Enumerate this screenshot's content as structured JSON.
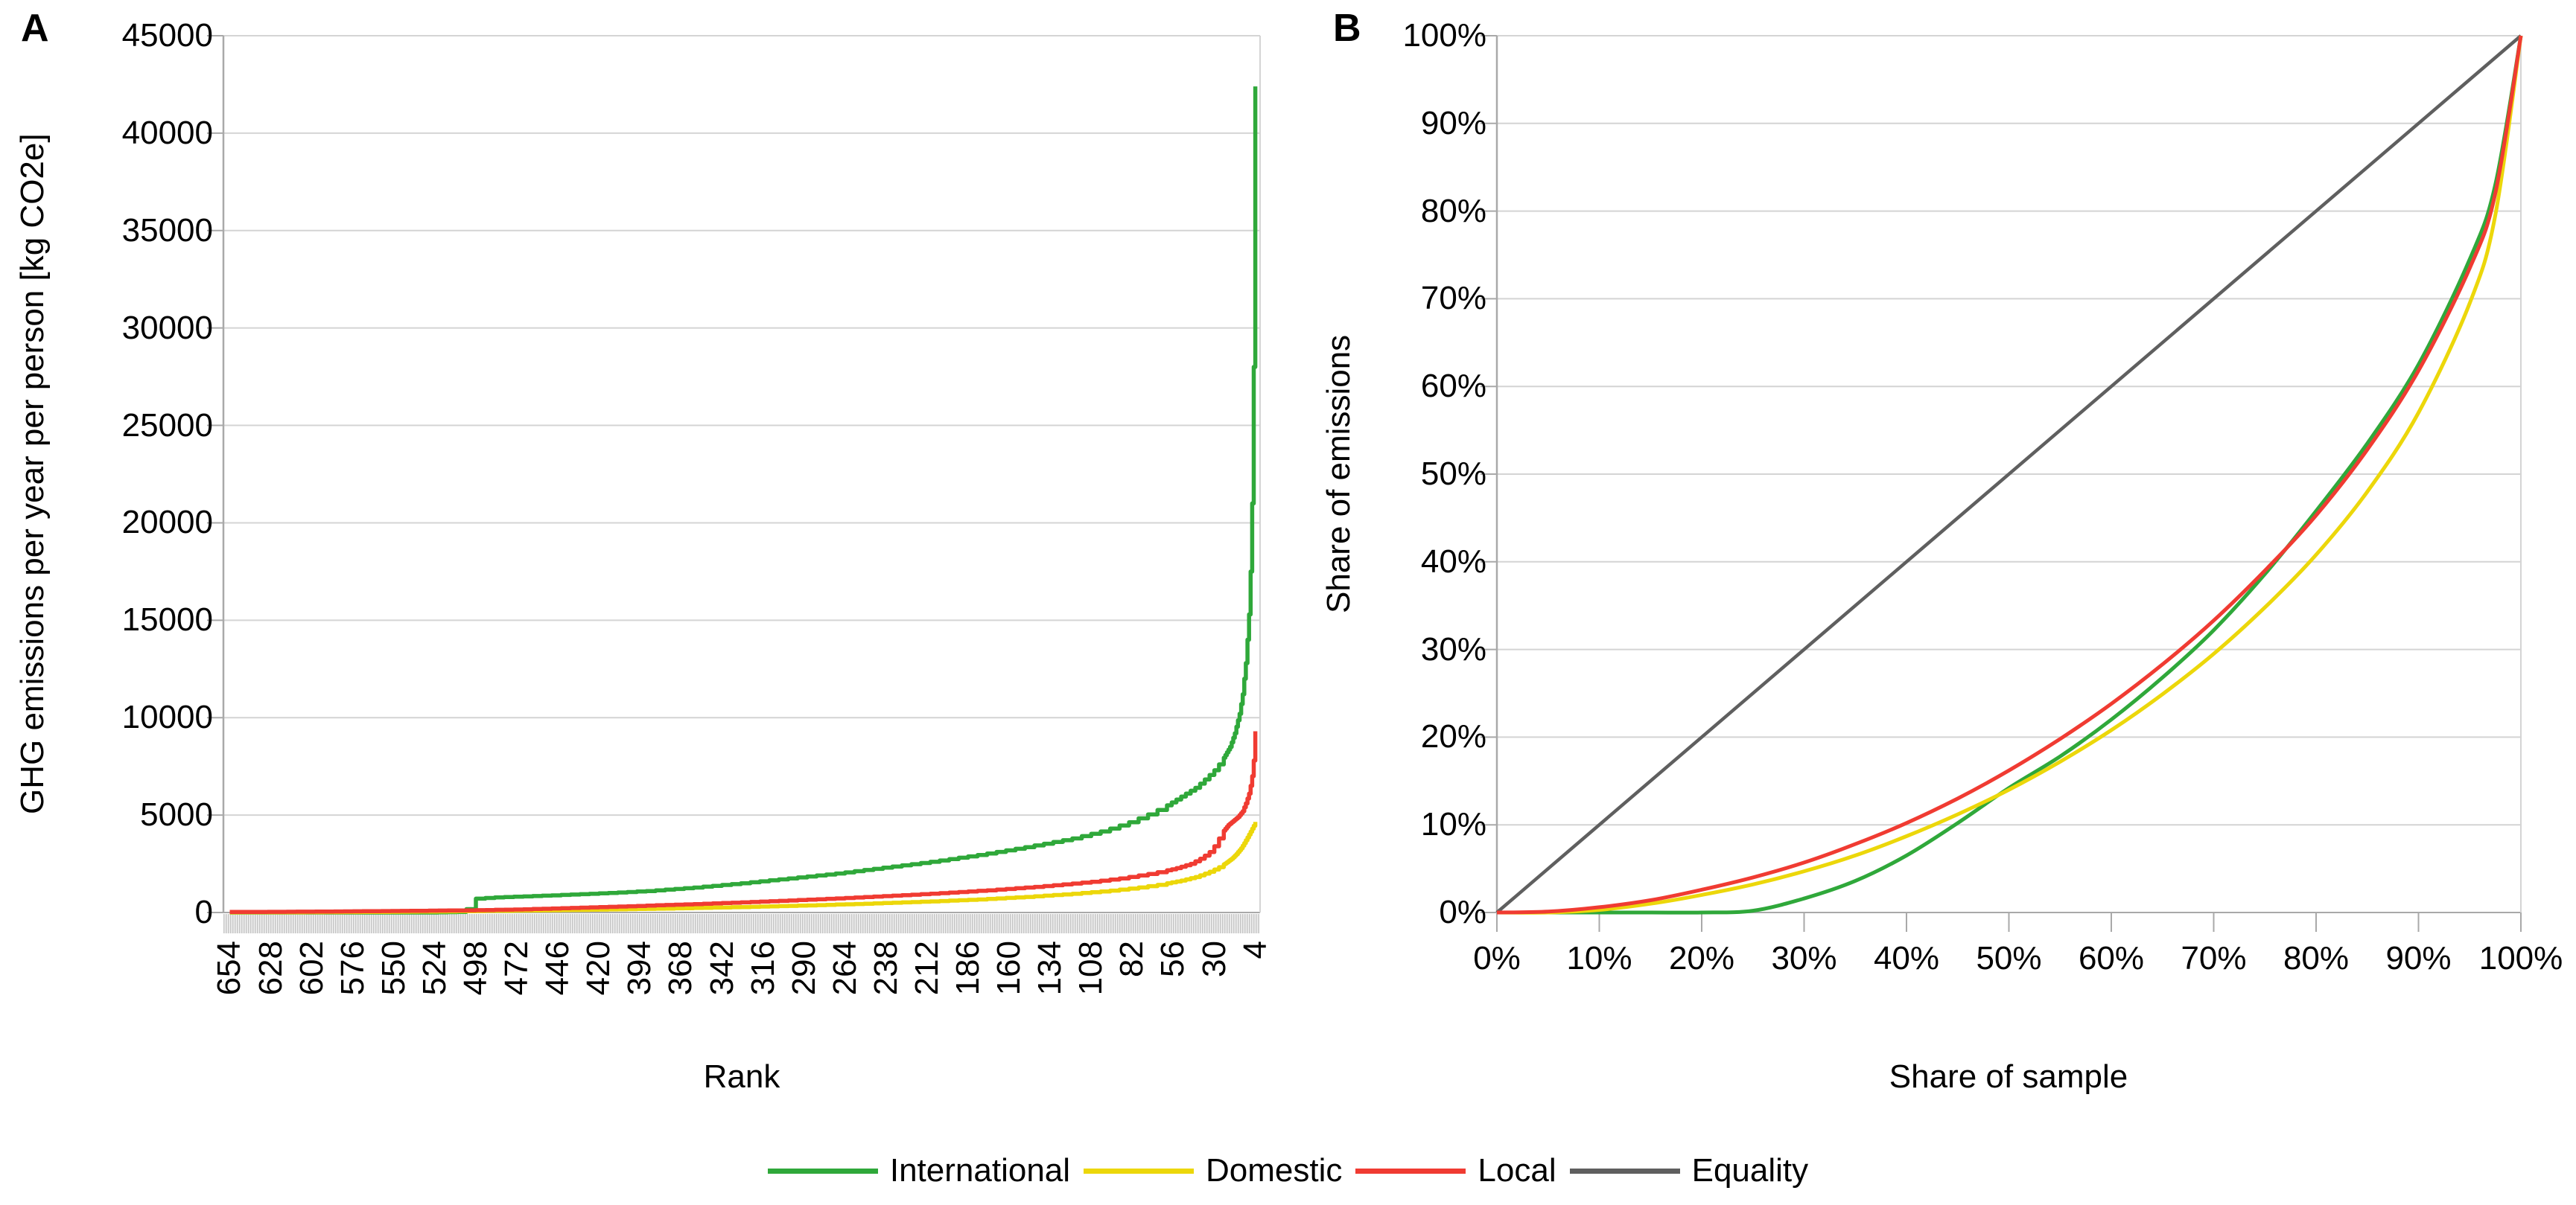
{
  "figure": {
    "panel_a": {
      "letter": "A"
    },
    "panel_b": {
      "letter": "B"
    },
    "legend": [
      {
        "label": "International",
        "color": "#2fa83a"
      },
      {
        "label": "Domestic",
        "color": "#ecd70a"
      },
      {
        "label": "Local",
        "color": "#f03b32"
      },
      {
        "label": "Equality",
        "color": "#5f5f5f"
      }
    ],
    "colors": {
      "gridline": "#d4d4d4",
      "axis": "#a9a9a9",
      "tick_band_dark": "#c6c6c6",
      "tick_band_light": "#f2f2f2",
      "text": "#000000"
    }
  },
  "chart_data": [
    {
      "type": "line",
      "panel": "A",
      "style": "step",
      "xlabel": "Rank",
      "ylabel": "GHG emissions per year per person [kg CO2e]",
      "x_domain": [
        658,
        1
      ],
      "x_tick_labels": [
        654,
        628,
        602,
        576,
        550,
        524,
        498,
        472,
        446,
        420,
        394,
        368,
        342,
        316,
        290,
        264,
        238,
        212,
        186,
        160,
        134,
        108,
        82,
        56,
        30,
        4
      ],
      "ylim": [
        0,
        45000
      ],
      "y_ticks": [
        45000,
        40000,
        35000,
        30000,
        25000,
        20000,
        15000,
        10000,
        5000,
        0
      ],
      "grid": "horizontal",
      "series": [
        {
          "name": "International",
          "color": "#2fa83a",
          "points": [
            [
              654,
              0
            ],
            [
              525,
              0
            ],
            [
              505,
              40
            ],
            [
              500,
              700
            ],
            [
              488,
              770
            ],
            [
              470,
              820
            ],
            [
              450,
              880
            ],
            [
              420,
              980
            ],
            [
              390,
              1100
            ],
            [
              360,
              1280
            ],
            [
              330,
              1500
            ],
            [
              300,
              1750
            ],
            [
              270,
              2000
            ],
            [
              240,
              2300
            ],
            [
              210,
              2600
            ],
            [
              180,
              2950
            ],
            [
              150,
              3350
            ],
            [
              120,
              3800
            ],
            [
              100,
              4200
            ],
            [
              85,
              4600
            ],
            [
              70,
              5100
            ],
            [
              60,
              5500
            ],
            [
              50,
              6000
            ],
            [
              42,
              6400
            ],
            [
              35,
              6900
            ],
            [
              30,
              7300
            ],
            [
              25,
              7800
            ],
            [
              20,
              8500
            ],
            [
              17,
              9200
            ],
            [
              14,
              10200
            ],
            [
              12,
              11200
            ],
            [
              10,
              12800
            ],
            [
              9,
              14000
            ],
            [
              8,
              15300
            ],
            [
              7,
              17500
            ],
            [
              6,
              21000
            ],
            [
              5,
              28000
            ],
            [
              4,
              42400
            ]
          ]
        },
        {
          "name": "Domestic",
          "color": "#ecd70a",
          "points": [
            [
              654,
              5
            ],
            [
              600,
              15
            ],
            [
              560,
              30
            ],
            [
              520,
              55
            ],
            [
              490,
              80
            ],
            [
              450,
              115
            ],
            [
              410,
              160
            ],
            [
              370,
              215
            ],
            [
              330,
              280
            ],
            [
              290,
              360
            ],
            [
              250,
              455
            ],
            [
              210,
              570
            ],
            [
              180,
              670
            ],
            [
              150,
              800
            ],
            [
              120,
              960
            ],
            [
              100,
              1090
            ],
            [
              80,
              1260
            ],
            [
              65,
              1430
            ],
            [
              52,
              1620
            ],
            [
              42,
              1820
            ],
            [
              34,
              2050
            ],
            [
              28,
              2280
            ],
            [
              23,
              2520
            ],
            [
              19,
              2760
            ],
            [
              16,
              3000
            ],
            [
              13,
              3300
            ],
            [
              11,
              3560
            ],
            [
              9,
              3850
            ],
            [
              8,
              4000
            ],
            [
              7,
              4150
            ],
            [
              6,
              4300
            ],
            [
              5,
              4450
            ],
            [
              4,
              4650
            ]
          ]
        },
        {
          "name": "Local",
          "color": "#f03b32",
          "points": [
            [
              654,
              25
            ],
            [
              600,
              45
            ],
            [
              560,
              70
            ],
            [
              520,
              100
            ],
            [
              500,
              115
            ],
            [
              470,
              160
            ],
            [
              440,
              230
            ],
            [
              410,
              300
            ],
            [
              380,
              380
            ],
            [
              350,
              460
            ],
            [
              320,
              550
            ],
            [
              290,
              650
            ],
            [
              260,
              760
            ],
            [
              230,
              880
            ],
            [
              200,
              1010
            ],
            [
              170,
              1160
            ],
            [
              140,
              1340
            ],
            [
              110,
              1560
            ],
            [
              90,
              1750
            ],
            [
              70,
              2000
            ],
            [
              55,
              2250
            ],
            [
              45,
              2500
            ],
            [
              38,
              2800
            ],
            [
              33,
              3100
            ],
            [
              30,
              3400
            ],
            [
              27,
              3800
            ],
            [
              24,
              4200
            ],
            [
              21,
              4500
            ],
            [
              18,
              4700
            ],
            [
              15,
              4900
            ],
            [
              12,
              5200
            ],
            [
              10,
              5600
            ],
            [
              8,
              6100
            ],
            [
              7,
              6500
            ],
            [
              6,
              7000
            ],
            [
              5,
              7800
            ],
            [
              4,
              9300
            ]
          ]
        }
      ]
    },
    {
      "type": "line",
      "panel": "B",
      "style": "smooth",
      "xlabel": "Share of sample",
      "ylabel": "Share of emissions",
      "xlim": [
        0,
        100
      ],
      "ylim": [
        0,
        100
      ],
      "x_ticks": [
        "0%",
        "10%",
        "20%",
        "30%",
        "40%",
        "50%",
        "60%",
        "70%",
        "80%",
        "90%",
        "100%"
      ],
      "y_ticks": [
        "100%",
        "90%",
        "80%",
        "70%",
        "60%",
        "50%",
        "40%",
        "30%",
        "20%",
        "10%",
        "0%"
      ],
      "grid": "horizontal",
      "series": [
        {
          "name": "Equality",
          "color": "#5f5f5f",
          "straight": true,
          "points": [
            [
              0,
              0
            ],
            [
              100,
              100
            ]
          ]
        },
        {
          "name": "International",
          "color": "#2fa83a",
          "points": [
            [
              0,
              0
            ],
            [
              5,
              0
            ],
            [
              10,
              0
            ],
            [
              15,
              0
            ],
            [
              20,
              0
            ],
            [
              25,
              0.2
            ],
            [
              30,
              1.6
            ],
            [
              35,
              3.6
            ],
            [
              40,
              6.5
            ],
            [
              45,
              10.2
            ],
            [
              50,
              14.2
            ],
            [
              55,
              17.8
            ],
            [
              60,
              22
            ],
            [
              65,
              26.8
            ],
            [
              70,
              32.2
            ],
            [
              75,
              38.6
            ],
            [
              80,
              45.8
            ],
            [
              85,
              53.5
            ],
            [
              90,
              62.5
            ],
            [
              95,
              74.5
            ],
            [
              97.5,
              83
            ],
            [
              100,
              100
            ]
          ]
        },
        {
          "name": "Domestic",
          "color": "#ecd70a",
          "points": [
            [
              0,
              0
            ],
            [
              5,
              0
            ],
            [
              10,
              0.3
            ],
            [
              15,
              1
            ],
            [
              20,
              2
            ],
            [
              25,
              3.2
            ],
            [
              30,
              4.7
            ],
            [
              35,
              6.5
            ],
            [
              40,
              8.7
            ],
            [
              45,
              11.2
            ],
            [
              50,
              14
            ],
            [
              55,
              17.2
            ],
            [
              60,
              20.8
            ],
            [
              65,
              24.9
            ],
            [
              70,
              29.5
            ],
            [
              75,
              34.8
            ],
            [
              80,
              40.8
            ],
            [
              85,
              48
            ],
            [
              90,
              57
            ],
            [
              95,
              69.5
            ],
            [
              97.5,
              79.5
            ],
            [
              100,
              100
            ]
          ]
        },
        {
          "name": "Local",
          "color": "#f03b32",
          "points": [
            [
              0,
              0
            ],
            [
              5,
              0.1
            ],
            [
              10,
              0.6
            ],
            [
              15,
              1.4
            ],
            [
              20,
              2.6
            ],
            [
              25,
              4
            ],
            [
              30,
              5.7
            ],
            [
              35,
              7.8
            ],
            [
              40,
              10.2
            ],
            [
              45,
              13
            ],
            [
              50,
              16.2
            ],
            [
              55,
              19.8
            ],
            [
              60,
              23.8
            ],
            [
              65,
              28.3
            ],
            [
              70,
              33.3
            ],
            [
              75,
              39
            ],
            [
              80,
              45.3
            ],
            [
              85,
              52.8
            ],
            [
              90,
              61.8
            ],
            [
              95,
              73.5
            ],
            [
              97.5,
              82
            ],
            [
              100,
              100
            ]
          ]
        }
      ]
    }
  ]
}
